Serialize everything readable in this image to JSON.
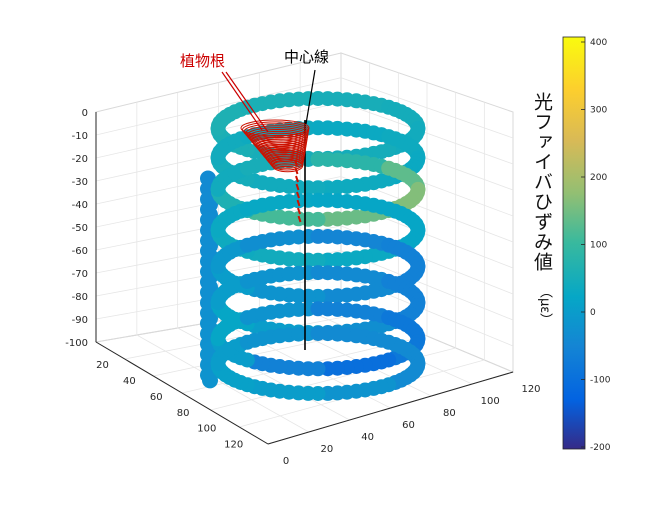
{
  "chart_data": {
    "type": "3d-helix-scatter",
    "z_ticks": [
      "0",
      "-10",
      "-20",
      "-30",
      "-40",
      "-50",
      "-60",
      "-70",
      "-80",
      "-90",
      "-100"
    ],
    "x_ticks": [
      "20",
      "40",
      "60",
      "80",
      "100",
      "120"
    ],
    "y_ticks": [
      "0",
      "20",
      "40",
      "60",
      "80",
      "100",
      "120"
    ],
    "colorbar": {
      "label": "光ファイバひずみ値",
      "unit": "（με）",
      "ticks": [
        "400",
        "300",
        "200",
        "100",
        "0",
        "-100",
        "-200"
      ],
      "range": [
        -200,
        400
      ],
      "colormap": "parula"
    },
    "annotations": {
      "root_label": "植物根",
      "root_color": "#cc0000",
      "center_label": "中心線",
      "center_color": "#000000"
    },
    "helix": {
      "turns": [
        {
          "z": -5,
          "strain": [
            40,
            45,
            50,
            55,
            60,
            55,
            50,
            45
          ]
        },
        {
          "z": -16,
          "strain": [
            30,
            35,
            40,
            45,
            40,
            35,
            30,
            35
          ]
        },
        {
          "z": -28,
          "strain": [
            160,
            140,
            110,
            60,
            40,
            50,
            80,
            130
          ]
        },
        {
          "z": -44,
          "strain": [
            20,
            30,
            40,
            35,
            30,
            25,
            20,
            20
          ]
        },
        {
          "z": -58,
          "strain": [
            -60,
            -40,
            -20,
            0,
            -10,
            -30,
            -50,
            -60
          ]
        },
        {
          "z": -72,
          "strain": [
            -60,
            -30,
            0,
            20,
            0,
            -20,
            -40,
            -60
          ]
        },
        {
          "z": -86,
          "strain": [
            -80,
            -100,
            -60,
            0,
            20,
            -20,
            -60,
            -80
          ]
        },
        {
          "z": -95,
          "strain": [
            -40,
            -20,
            0,
            10,
            0,
            -20,
            -40,
            -40
          ]
        }
      ]
    }
  }
}
